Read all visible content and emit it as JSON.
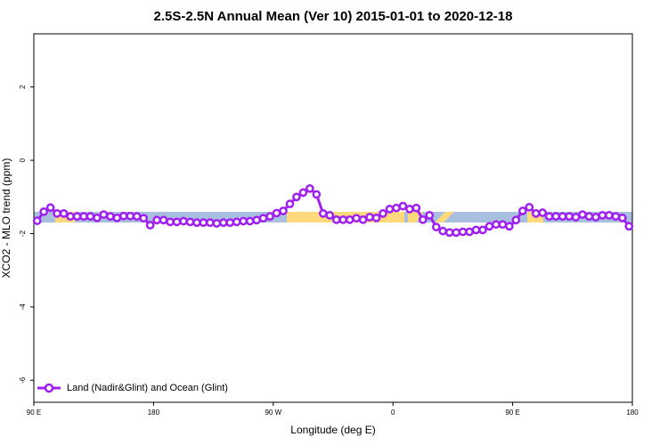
{
  "chart_data": {
    "type": "line",
    "title": "2.5S-2.5N Annual Mean (Ver 10)   2015-01-01 to 2020-12-18",
    "x_label": "Longitude (deg E)",
    "y_label": "XCO2 - MLO trend (ppm)",
    "x": [
      92.5,
      97.5,
      102.5,
      107.5,
      112.5,
      117.5,
      122.5,
      127.5,
      132.5,
      137.5,
      142.5,
      147.5,
      152.5,
      157.5,
      162.5,
      167.5,
      172.5,
      177.5,
      182.5,
      187.5,
      192.5,
      197.5,
      202.5,
      207.5,
      212.5,
      217.5,
      222.5,
      227.5,
      232.5,
      237.5,
      242.5,
      247.5,
      252.5,
      257.5,
      262.5,
      267.5,
      272.5,
      277.5,
      282.5,
      287.5,
      292.5,
      297.5,
      302.5,
      307.5,
      312.5,
      317.5,
      322.5,
      327.5,
      332.5,
      337.5,
      342.5,
      347.5,
      352.5,
      357.5,
      362.5,
      367.5,
      372.5,
      377.5,
      382.5,
      387.5,
      392.5,
      397.5,
      402.5,
      407.5,
      412.5,
      417.5,
      422.5,
      427.5,
      432.5,
      437.5,
      442.5,
      447.5,
      452.5,
      457.5,
      462.5,
      467.5,
      472.5,
      477.5,
      482.5,
      487.5,
      492.5,
      497.5,
      502.5,
      507.5,
      512.5,
      517.5,
      522.5,
      527.5,
      532.5,
      537.5
    ],
    "series": [
      {
        "name": "Land (Nadir&Glint) and Ocean (Glint)",
        "color": "#a020f0",
        "values": [
          -1.65,
          -1.4,
          -1.29,
          -1.45,
          -1.45,
          -1.53,
          -1.53,
          -1.53,
          -1.53,
          -1.57,
          -1.48,
          -1.53,
          -1.57,
          -1.52,
          -1.52,
          -1.53,
          -1.58,
          -1.77,
          -1.63,
          -1.63,
          -1.68,
          -1.68,
          -1.66,
          -1.68,
          -1.7,
          -1.7,
          -1.7,
          -1.72,
          -1.7,
          -1.7,
          -1.68,
          -1.66,
          -1.66,
          -1.63,
          -1.58,
          -1.53,
          -1.44,
          -1.38,
          -1.19,
          -1.0,
          -0.88,
          -0.77,
          -0.93,
          -1.45,
          -1.5,
          -1.62,
          -1.62,
          -1.62,
          -1.58,
          -1.62,
          -1.55,
          -1.57,
          -1.45,
          -1.33,
          -1.3,
          -1.25,
          -1.33,
          -1.3,
          -1.62,
          -1.5,
          -1.82,
          -1.93,
          -1.97,
          -1.97,
          -1.95,
          -1.95,
          -1.9,
          -1.9,
          -1.8,
          -1.75,
          -1.75,
          -1.8,
          -1.63,
          -1.38,
          -1.28,
          -1.45,
          -1.43,
          -1.53,
          -1.53,
          -1.53,
          -1.53,
          -1.55,
          -1.48,
          -1.53,
          -1.55,
          -1.5,
          -1.5,
          -1.53,
          -1.57,
          -1.8
        ]
      }
    ],
    "xlim": [
      90,
      540
    ],
    "xticks": [
      {
        "value": 90,
        "label": "90 E"
      },
      180,
      {
        "value": 270,
        "label": "90 W"
      },
      {
        "value": 360,
        "label": "0"
      },
      {
        "value": 450,
        "label": "90 E"
      },
      {
        "value": 540,
        "label": "180"
      }
    ],
    "ylim": [
      -6.6,
      3.45
    ],
    "yticks": [
      2,
      0,
      -2,
      -4,
      -6
    ],
    "legend": "bottom-left"
  }
}
